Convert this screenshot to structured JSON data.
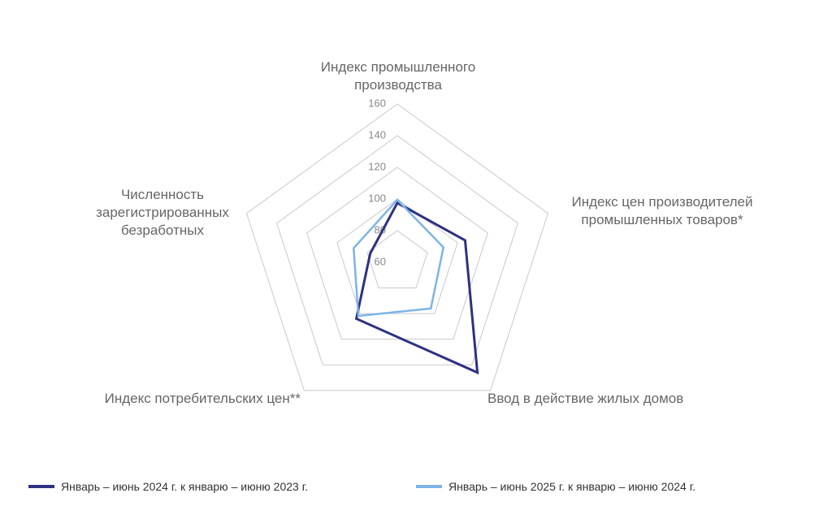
{
  "chart_data": {
    "type": "radar",
    "categories": [
      "Индекс промышленного\nпроизводства",
      "Индекс цен производителей\nпромышленных товаров*",
      "Ввод в действие жилых домов",
      "Индекс потребительских цен**",
      "Численность\nзарегистрированных\nбезработных"
    ],
    "ylim": [
      60,
      160
    ],
    "yticks": [
      60,
      80,
      100,
      120,
      140,
      160
    ],
    "grid": true,
    "series": [
      {
        "name": "Январь – июнь 2024 г. к январю – июню 2023 г.",
        "color": "#2e3182",
        "values": [
          97.5,
          105,
          146,
          104,
          78
        ]
      },
      {
        "name": "Январь – июнь 2025 г. к январю – июню 2024 г.",
        "color": "#7db4e6",
        "values": [
          99.5,
          90.6,
          96,
          101.8,
          89
        ]
      }
    ]
  }
}
